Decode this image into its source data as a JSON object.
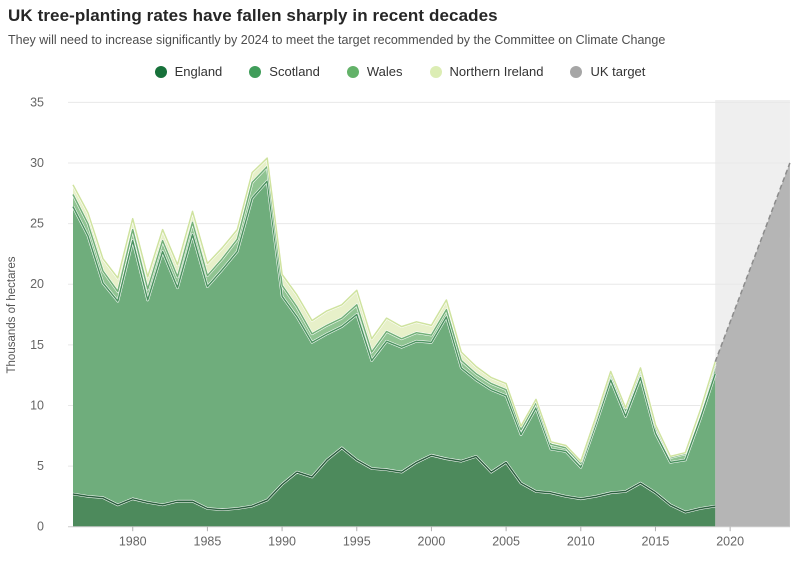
{
  "header": {
    "title": "UK tree-planting rates have fallen sharply in recent decades",
    "subtitle": "They will need to increase significantly by 2024 to meet the target recommended by the Committee on Climate Change"
  },
  "chart_data": {
    "type": "area",
    "stacked": true,
    "title": "UK tree-planting rates have fallen sharply in recent decades",
    "xlabel": "",
    "ylabel": "Thousands of hectares",
    "xlim": [
      1976,
      2024
    ],
    "ylim": [
      0,
      35
    ],
    "xticks": [
      1980,
      1985,
      1990,
      1995,
      2000,
      2005,
      2010,
      2015,
      2020
    ],
    "yticks": [
      0,
      5,
      10,
      15,
      20,
      25,
      30,
      35
    ],
    "grid": "horizontal",
    "legend_position": "top",
    "x": [
      1976,
      1977,
      1978,
      1979,
      1980,
      1981,
      1982,
      1983,
      1984,
      1985,
      1986,
      1987,
      1988,
      1989,
      1990,
      1991,
      1992,
      1993,
      1994,
      1995,
      1996,
      1997,
      1998,
      1999,
      2000,
      2001,
      2002,
      2003,
      2004,
      2005,
      2006,
      2007,
      2008,
      2009,
      2010,
      2011,
      2012,
      2013,
      2014,
      2015,
      2016,
      2017,
      2018,
      2019
    ],
    "series": [
      {
        "name": "England",
        "fill": "#4d8a5c",
        "stroke": "#2b5f3e",
        "legend_color": "#17713a",
        "values": [
          2.7,
          2.5,
          2.4,
          1.8,
          2.3,
          2.0,
          1.8,
          2.1,
          2.1,
          1.5,
          1.4,
          1.5,
          1.7,
          2.2,
          3.5,
          4.5,
          4.1,
          5.5,
          6.5,
          5.5,
          4.8,
          4.7,
          4.5,
          5.3,
          5.9,
          5.6,
          5.4,
          5.8,
          4.5,
          5.3,
          3.6,
          2.9,
          2.8,
          2.5,
          2.3,
          2.5,
          2.8,
          2.9,
          3.6,
          2.8,
          1.8,
          1.2,
          1.5,
          1.7
        ]
      },
      {
        "name": "Scotland",
        "fill": "#6fad7c",
        "stroke": "#4c9360",
        "legend_color": "#409d5a",
        "values": [
          23.7,
          21.5,
          17.7,
          16.8,
          21.3,
          16.7,
          20.9,
          17.6,
          22.0,
          18.3,
          19.8,
          21.2,
          25.4,
          26.3,
          15.5,
          12.8,
          11.1,
          10.4,
          10.0,
          12.0,
          8.9,
          10.6,
          10.3,
          10.0,
          9.3,
          11.7,
          7.7,
          6.3,
          6.8,
          5.5,
          4.0,
          6.9,
          3.6,
          3.7,
          2.6,
          5.9,
          9.3,
          6.2,
          8.7,
          4.9,
          3.5,
          4.3,
          7.4,
          10.9
        ]
      },
      {
        "name": "Wales",
        "fill": "#90c492",
        "stroke": "#72b077",
        "legend_color": "#63b269",
        "values": [
          1.0,
          1.0,
          1.0,
          0.8,
          0.9,
          0.9,
          0.9,
          0.9,
          1.0,
          0.9,
          0.9,
          1.0,
          1.3,
          1.2,
          0.9,
          0.8,
          0.7,
          0.7,
          0.7,
          0.8,
          0.7,
          0.8,
          0.7,
          0.7,
          0.6,
          0.6,
          0.6,
          0.5,
          0.5,
          0.5,
          0.4,
          0.4,
          0.4,
          0.3,
          0.3,
          0.4,
          0.5,
          0.5,
          0.6,
          0.5,
          0.4,
          0.5,
          0.6,
          0.8
        ]
      },
      {
        "name": "Northern Ireland",
        "fill": "#e7f0c9",
        "stroke": "#cfe39f",
        "legend_color": "#dcedb4",
        "values": [
          0.8,
          0.9,
          1.0,
          1.1,
          0.9,
          1.0,
          0.9,
          1.0,
          0.9,
          1.0,
          0.9,
          0.8,
          0.8,
          0.7,
          0.9,
          1.0,
          1.1,
          1.2,
          1.1,
          1.2,
          1.1,
          1.1,
          1.0,
          0.9,
          0.8,
          0.8,
          0.7,
          0.6,
          0.5,
          0.5,
          0.3,
          0.3,
          0.2,
          0.2,
          0.2,
          0.2,
          0.2,
          0.2,
          0.2,
          0.2,
          0.1,
          0.1,
          0.1,
          0.2
        ]
      }
    ],
    "target": {
      "label": "UK target",
      "x": [
        2019,
        2024
      ],
      "values": [
        13.6,
        30
      ],
      "band_color": "#efefef",
      "fill": "#b5b5b5",
      "line_color": "#8c8c8c",
      "legend_color": "#a6a6a6"
    },
    "annotations": []
  },
  "axis": {
    "y_title": "Thousands of hectares"
  },
  "colors": {
    "grid": "#e8e8e8",
    "axis_line": "#cbcbcb",
    "tick": "#b0b0b0",
    "tick_label": "#666666"
  }
}
